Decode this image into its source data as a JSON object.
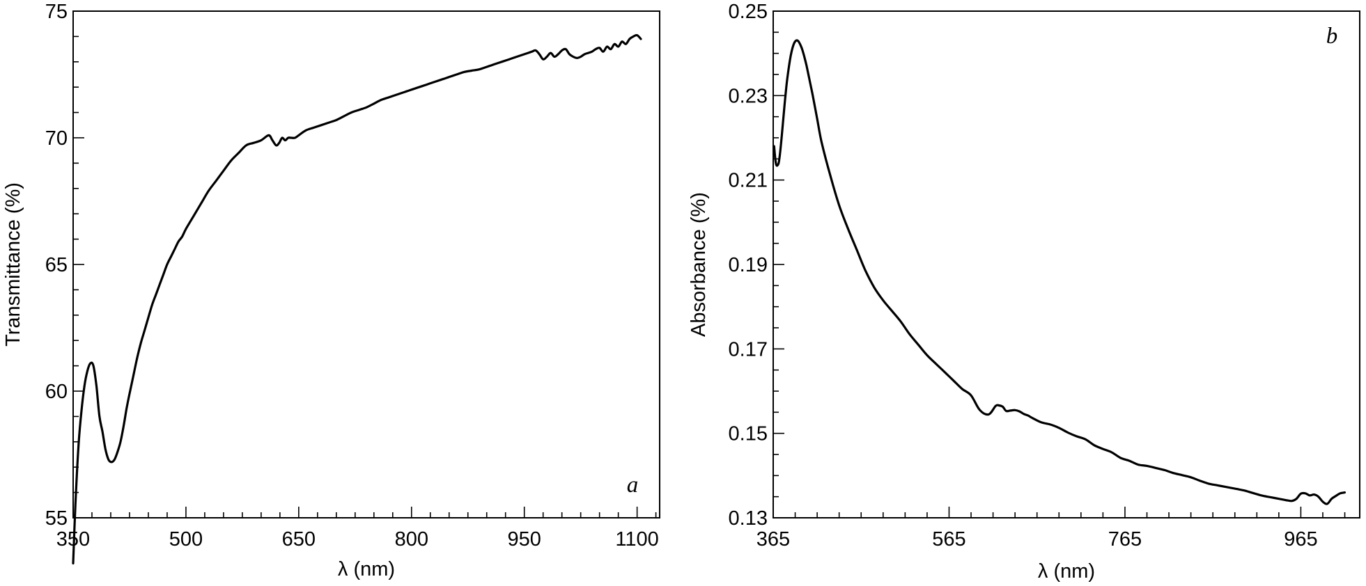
{
  "chart_data": [
    {
      "type": "line",
      "panel_label": "a",
      "xlabel": "λ (nm)",
      "ylabel": "Transmittance (%)",
      "xlim": [
        350,
        1130
      ],
      "ylim": [
        55,
        75
      ],
      "xticks": [
        350,
        500,
        650,
        800,
        950,
        1100
      ],
      "xtick_labels": [
        "350",
        "500",
        "650",
        "800",
        "950",
        "1100"
      ],
      "xticks_minor_step": 25,
      "yticks": [
        55,
        60,
        65,
        70,
        75
      ],
      "ytick_labels": [
        "55",
        "60",
        "65",
        "70",
        "75"
      ],
      "yticks_minor_step": 1,
      "grid": false,
      "series": [
        {
          "color": "#000000",
          "x": [
            350,
            353,
            357,
            361,
            365,
            369,
            373,
            377,
            381,
            385,
            389,
            393,
            397,
            401,
            405,
            409,
            413,
            417,
            421,
            425,
            430,
            435,
            440,
            445,
            450,
            455,
            460,
            465,
            470,
            475,
            480,
            485,
            490,
            495,
            500,
            510,
            520,
            530,
            540,
            550,
            560,
            570,
            580,
            590,
            600,
            610,
            615,
            620,
            624,
            628,
            632,
            636,
            640,
            645,
            650,
            660,
            670,
            680,
            690,
            700,
            710,
            720,
            730,
            740,
            750,
            760,
            770,
            780,
            790,
            800,
            810,
            820,
            830,
            840,
            850,
            860,
            870,
            880,
            890,
            900,
            910,
            920,
            930,
            940,
            950,
            960,
            965,
            970,
            975,
            980,
            985,
            990,
            995,
            1000,
            1005,
            1010,
            1015,
            1020,
            1025,
            1030,
            1035,
            1040,
            1045,
            1050,
            1055,
            1060,
            1065,
            1070,
            1075,
            1080,
            1085,
            1090,
            1095,
            1100,
            1105
          ],
          "y": [
            53.2,
            55.5,
            57.8,
            59.2,
            60.2,
            60.8,
            61.1,
            61.0,
            60.2,
            59.0,
            58.4,
            57.7,
            57.3,
            57.2,
            57.3,
            57.6,
            58.0,
            58.6,
            59.3,
            59.9,
            60.6,
            61.3,
            61.9,
            62.4,
            62.9,
            63.4,
            63.8,
            64.2,
            64.6,
            65.0,
            65.3,
            65.6,
            65.9,
            66.1,
            66.4,
            66.9,
            67.4,
            67.9,
            68.3,
            68.7,
            69.1,
            69.4,
            69.7,
            69.8,
            69.9,
            70.1,
            69.9,
            69.7,
            69.8,
            70.0,
            69.9,
            70.0,
            70.0,
            70.0,
            70.1,
            70.3,
            70.4,
            70.5,
            70.6,
            70.7,
            70.85,
            71.0,
            71.1,
            71.2,
            71.35,
            71.5,
            71.6,
            71.7,
            71.8,
            71.9,
            72.0,
            72.1,
            72.2,
            72.3,
            72.4,
            72.5,
            72.6,
            72.65,
            72.7,
            72.8,
            72.9,
            73.0,
            73.1,
            73.2,
            73.3,
            73.4,
            73.45,
            73.3,
            73.1,
            73.2,
            73.35,
            73.2,
            73.3,
            73.45,
            73.5,
            73.3,
            73.2,
            73.15,
            73.2,
            73.3,
            73.35,
            73.4,
            73.5,
            73.55,
            73.4,
            73.6,
            73.5,
            73.7,
            73.6,
            73.8,
            73.7,
            73.9,
            74.0,
            74.05,
            73.9
          ]
        }
      ]
    },
    {
      "type": "line",
      "panel_label": "b",
      "xlabel": "λ (nm)",
      "ylabel": "Absorbance (%)",
      "xlim": [
        365,
        1032
      ],
      "ylim": [
        0.13,
        0.25
      ],
      "xticks": [
        365,
        565,
        765,
        965
      ],
      "xtick_labels": [
        "365",
        "565",
        "765",
        "965"
      ],
      "xticks_minor_step": 25,
      "yticks": [
        0.13,
        0.15,
        0.17,
        0.19,
        0.21,
        0.23,
        0.25
      ],
      "ytick_labels": [
        "0.13",
        "0.15",
        "0.17",
        "0.19",
        "0.21",
        "0.23",
        "0.25"
      ],
      "yticks_minor_step": 0.005,
      "grid": false,
      "series": [
        {
          "color": "#000000",
          "x": [
            366,
            368,
            370,
            372,
            375,
            378,
            381,
            385,
            389,
            393,
            397,
            400,
            403,
            406,
            410,
            415,
            420,
            430,
            440,
            450,
            460,
            470,
            480,
            490,
            500,
            510,
            520,
            530,
            540,
            550,
            560,
            570,
            580,
            590,
            600,
            610,
            618,
            622,
            626,
            630,
            635,
            640,
            645,
            650,
            655,
            660,
            670,
            680,
            690,
            700,
            710,
            720,
            730,
            740,
            750,
            760,
            770,
            780,
            790,
            800,
            810,
            820,
            830,
            840,
            850,
            860,
            870,
            880,
            890,
            900,
            910,
            920,
            930,
            940,
            950,
            955,
            960,
            965,
            970,
            975,
            980,
            985,
            990,
            995,
            1000,
            1005,
            1010,
            1015
          ],
          "y": [
            0.218,
            0.214,
            0.2135,
            0.215,
            0.221,
            0.228,
            0.234,
            0.2395,
            0.2425,
            0.243,
            0.2415,
            0.2395,
            0.237,
            0.234,
            0.23,
            0.2245,
            0.219,
            0.211,
            0.204,
            0.1985,
            0.1935,
            0.1885,
            0.1845,
            0.1815,
            0.179,
            0.1765,
            0.1735,
            0.171,
            0.1685,
            0.1665,
            0.1645,
            0.1625,
            0.1605,
            0.159,
            0.1555,
            0.1545,
            0.1565,
            0.1566,
            0.1563,
            0.1553,
            0.1554,
            0.1555,
            0.1552,
            0.1546,
            0.1542,
            0.1536,
            0.1526,
            0.1521,
            0.1513,
            0.1502,
            0.1493,
            0.1486,
            0.1472,
            0.1463,
            0.1455,
            0.1442,
            0.1435,
            0.1426,
            0.1423,
            0.1418,
            0.1413,
            0.1406,
            0.1401,
            0.1396,
            0.1388,
            0.1381,
            0.1377,
            0.1373,
            0.1369,
            0.1365,
            0.1359,
            0.1353,
            0.1349,
            0.1345,
            0.1341,
            0.134,
            0.1345,
            0.1357,
            0.1358,
            0.1353,
            0.1355,
            0.135,
            0.1338,
            0.1333,
            0.1345,
            0.1352,
            0.1358,
            0.136
          ]
        }
      ]
    }
  ]
}
